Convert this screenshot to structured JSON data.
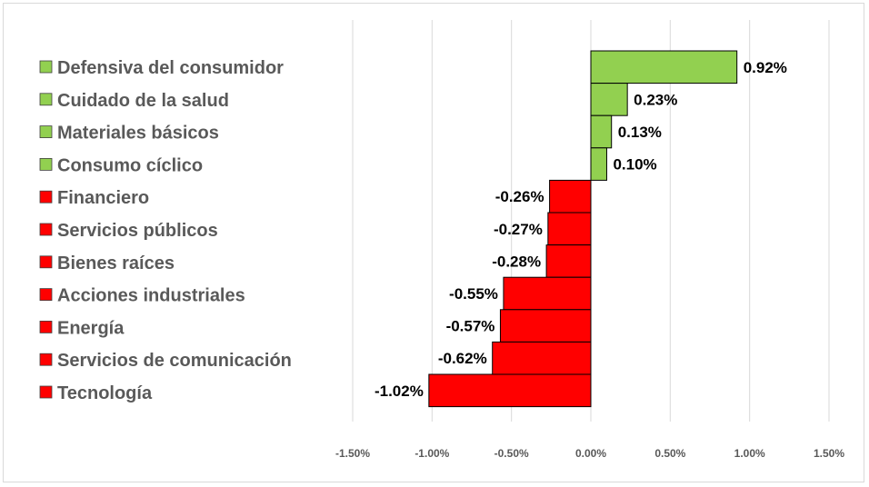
{
  "chart_data": {
    "type": "bar",
    "orientation": "horizontal",
    "categories": [
      "Defensiva del consumidor",
      "Cuidado de la salud",
      "Materiales básicos",
      "Consumo cíclico",
      "Financiero",
      "Servicios públicos",
      "Bienes raíces",
      "Acciones industriales",
      "Energía",
      "Servicios de comunicación",
      "Tecnología"
    ],
    "values": [
      0.92,
      0.23,
      0.13,
      0.1,
      -0.26,
      -0.27,
      -0.28,
      -0.55,
      -0.57,
      -0.62,
      -1.02
    ],
    "data_labels": [
      "0.92%",
      "0.23%",
      "0.13%",
      "0.10%",
      "-0.26%",
      "-0.27%",
      "-0.28%",
      "-0.55%",
      "-0.57%",
      "-0.62%",
      "-1.02%"
    ],
    "value_unit": "%",
    "xlim": [
      -1.5,
      1.5
    ],
    "x_ticks": [
      -1.5,
      -1.0,
      -0.5,
      0.0,
      0.5,
      1.0,
      1.5
    ],
    "x_tick_labels": [
      "-1.50%",
      "-1.00%",
      "-0.50%",
      "0.00%",
      "0.50%",
      "1.00%",
      "1.50%"
    ],
    "grid": "vertical",
    "legend_placement": "left",
    "colors": {
      "positive": "#92d050",
      "negative": "#ff0000",
      "outline": "#000000",
      "grid": "#d9d9d9"
    },
    "title": "",
    "xlabel": "",
    "ylabel": ""
  }
}
